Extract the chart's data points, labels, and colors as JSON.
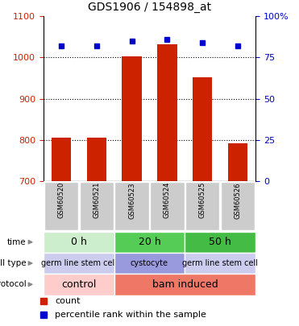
{
  "title": "GDS1906 / 154898_at",
  "samples": [
    "GSM60520",
    "GSM60521",
    "GSM60523",
    "GSM60524",
    "GSM60525",
    "GSM60526"
  ],
  "bar_values": [
    805,
    805,
    1003,
    1032,
    952,
    791
  ],
  "dot_values": [
    82,
    82,
    85,
    86,
    84,
    82
  ],
  "ylim_left": [
    700,
    1100
  ],
  "ylim_right": [
    0,
    100
  ],
  "yticks_left": [
    700,
    800,
    900,
    1000,
    1100
  ],
  "yticks_right": [
    0,
    25,
    50,
    75,
    100
  ],
  "bar_color": "#cc2200",
  "dot_color": "#0000cc",
  "time_labels": [
    [
      "0 h",
      0,
      2
    ],
    [
      "20 h",
      2,
      4
    ],
    [
      "50 h",
      4,
      6
    ]
  ],
  "time_colors": [
    "#cceecc",
    "#55cc55",
    "#44bb44"
  ],
  "celltype_labels": [
    [
      "germ line stem cell",
      0,
      2
    ],
    [
      "cystocyte",
      2,
      4
    ],
    [
      "germ line stem cell",
      4,
      6
    ]
  ],
  "celltype_colors": [
    "#ccccee",
    "#9999dd",
    "#ccccee"
  ],
  "protocol_labels": [
    [
      "control",
      0,
      2
    ],
    [
      "bam induced",
      2,
      6
    ]
  ],
  "protocol_colors": [
    "#ffcccc",
    "#ee7766"
  ],
  "row_labels": [
    "time",
    "cell type",
    "protocol"
  ],
  "legend_count_color": "#cc2200",
  "legend_dot_color": "#0000cc",
  "legend_count_label": "count",
  "legend_dot_label": "percentile rank within the sample",
  "sample_bg_color": "#cccccc",
  "bar_bottom": 700,
  "bar_width": 0.55
}
